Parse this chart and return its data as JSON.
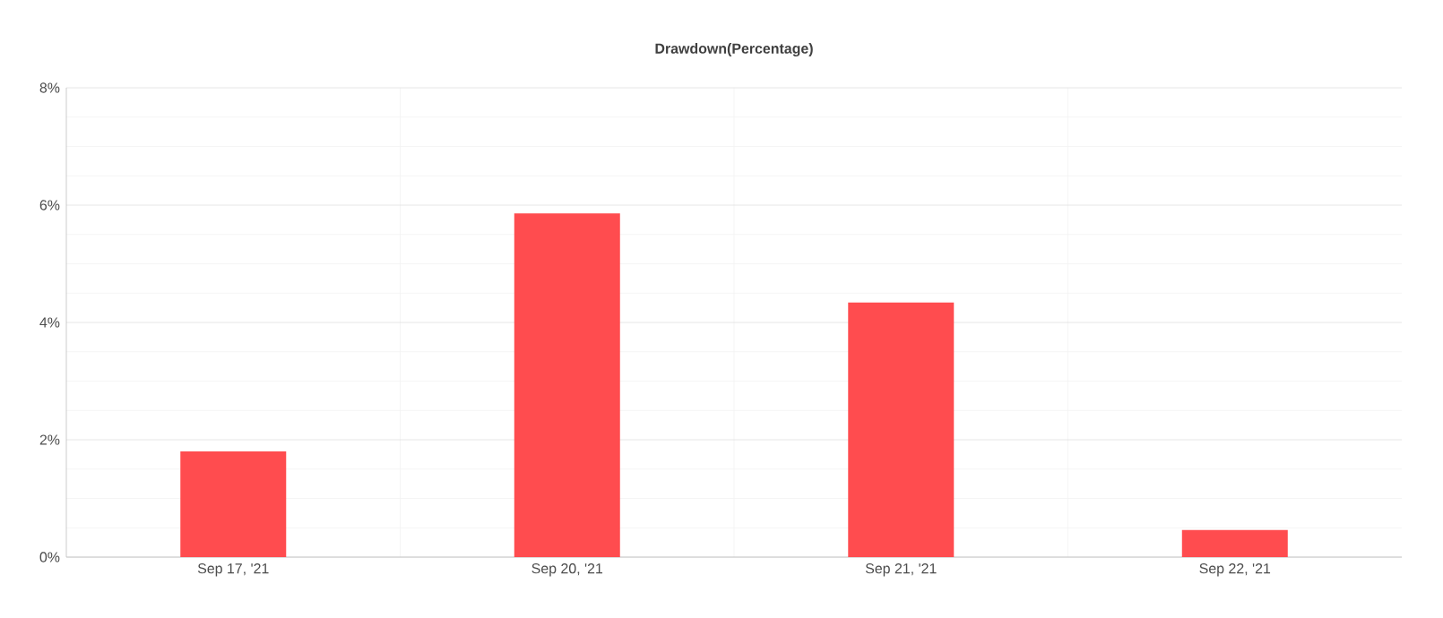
{
  "chart_data": {
    "type": "bar",
    "title": "Drawdown(Percentage)",
    "categories": [
      "Sep 17, '21",
      "Sep 20, '21",
      "Sep 21, '21",
      "Sep 22, '21"
    ],
    "values": [
      1.8,
      5.86,
      4.34,
      0.46
    ],
    "color": "#ff4c4f",
    "ylim": [
      0,
      8
    ],
    "yticks": [
      {
        "value": 0,
        "label": "0%"
      },
      {
        "value": 2,
        "label": "2%"
      },
      {
        "value": 4,
        "label": "4%"
      },
      {
        "value": 6,
        "label": "6%"
      },
      {
        "value": 8,
        "label": "8%"
      }
    ],
    "grid": true
  }
}
